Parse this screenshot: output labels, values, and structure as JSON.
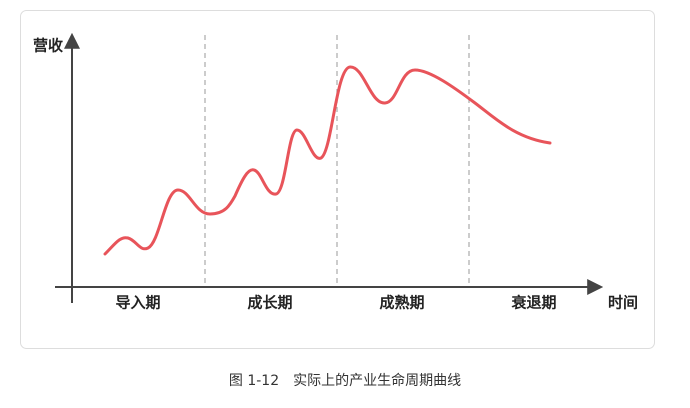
{
  "diagram": {
    "y_axis_label": "营收",
    "x_axis_label": "时间",
    "stages": [
      "导入期",
      "成长期",
      "成熟期",
      "衰退期"
    ]
  },
  "caption": "图 1-12　实际上的产业生命周期曲线"
}
